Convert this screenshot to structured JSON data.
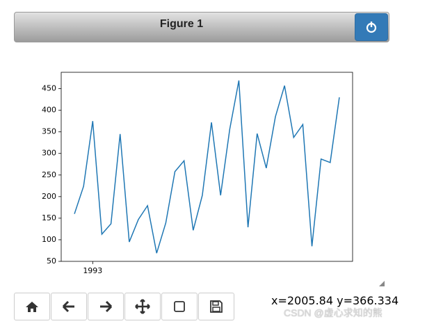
{
  "window": {
    "title": "Figure 1",
    "status": "x=2005.84 y=366.334",
    "watermark": "CSDN @虚心求知的熊"
  },
  "chart_data": {
    "type": "line",
    "x": [
      1991,
      1992,
      1993,
      1994,
      1995,
      1996,
      1997,
      1998,
      1999,
      2000,
      2001,
      2002,
      2003,
      2004,
      2005,
      2006,
      2007,
      2008,
      2009,
      2010,
      2011,
      2012,
      2013,
      2014,
      2015,
      2016,
      2017,
      2018,
      2019,
      2020
    ],
    "series": [
      {
        "color": "#1f77b4",
        "values": [
          160,
          224,
          375,
          113,
          137,
          345,
          95,
          147,
          179,
          69,
          139,
          258,
          283,
          122,
          203,
          372,
          203,
          356,
          469,
          129,
          346,
          266,
          385,
          457,
          337,
          367,
          85,
          287,
          279,
          430
        ]
      }
    ],
    "xlim": [
      1989.55,
      2021.45
    ],
    "xticks": [
      1993
    ],
    "ylim": [
      50,
      488
    ],
    "yticks": [
      50,
      100,
      150,
      200,
      250,
      300,
      350,
      400,
      450
    ]
  }
}
